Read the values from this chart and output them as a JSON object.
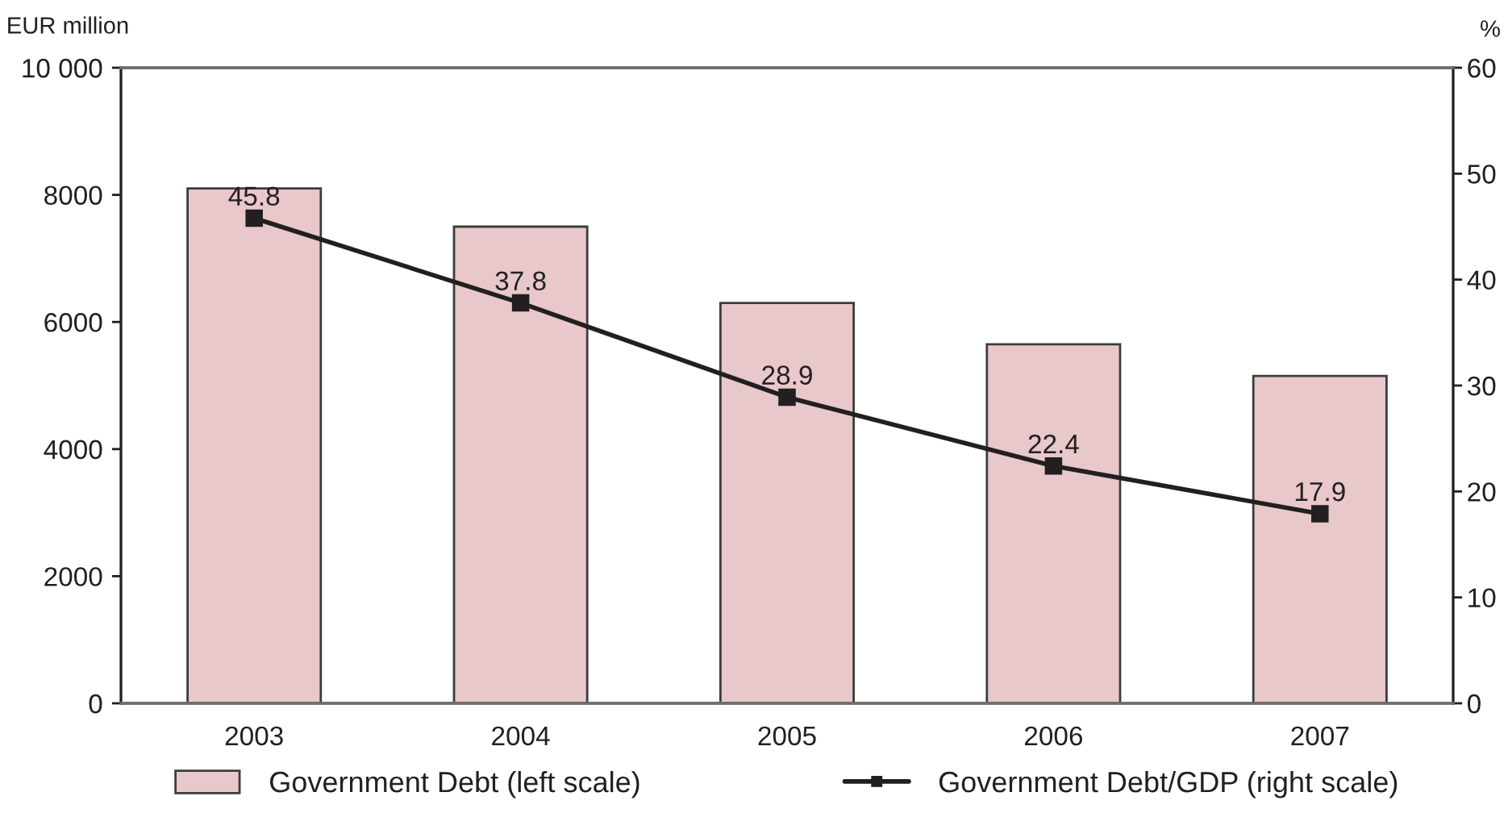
{
  "chart_data": {
    "type": "bar",
    "categories": [
      "2003",
      "2004",
      "2005",
      "2006",
      "2007"
    ],
    "ylabel": "EUR million",
    "y2label": "%",
    "ylim": [
      0,
      10000
    ],
    "yticks": [
      0,
      2000,
      4000,
      6000,
      8000,
      {
        "value": 10000,
        "label": "10 000"
      }
    ],
    "y2lim": [
      0,
      60
    ],
    "y2ticks": [
      0,
      10,
      20,
      30,
      40,
      50,
      60
    ],
    "legend": "bottom",
    "marker": "square",
    "line_style": "solid",
    "series": [
      {
        "name": "Government Debt (left scale)",
        "color": "#e8c8ca",
        "values": [
          8100,
          7500,
          6300,
          5650,
          5150
        ]
      },
      {
        "name": "Government Debt/GDP (right scale)",
        "type": "line",
        "axis": "y2",
        "color": "#231f20",
        "values": [
          45.8,
          37.8,
          28.9,
          22.4,
          17.9
        ],
        "value_labels": [
          "45.8",
          "37.8",
          "28.9",
          "22.4",
          "17.9"
        ]
      }
    ]
  }
}
